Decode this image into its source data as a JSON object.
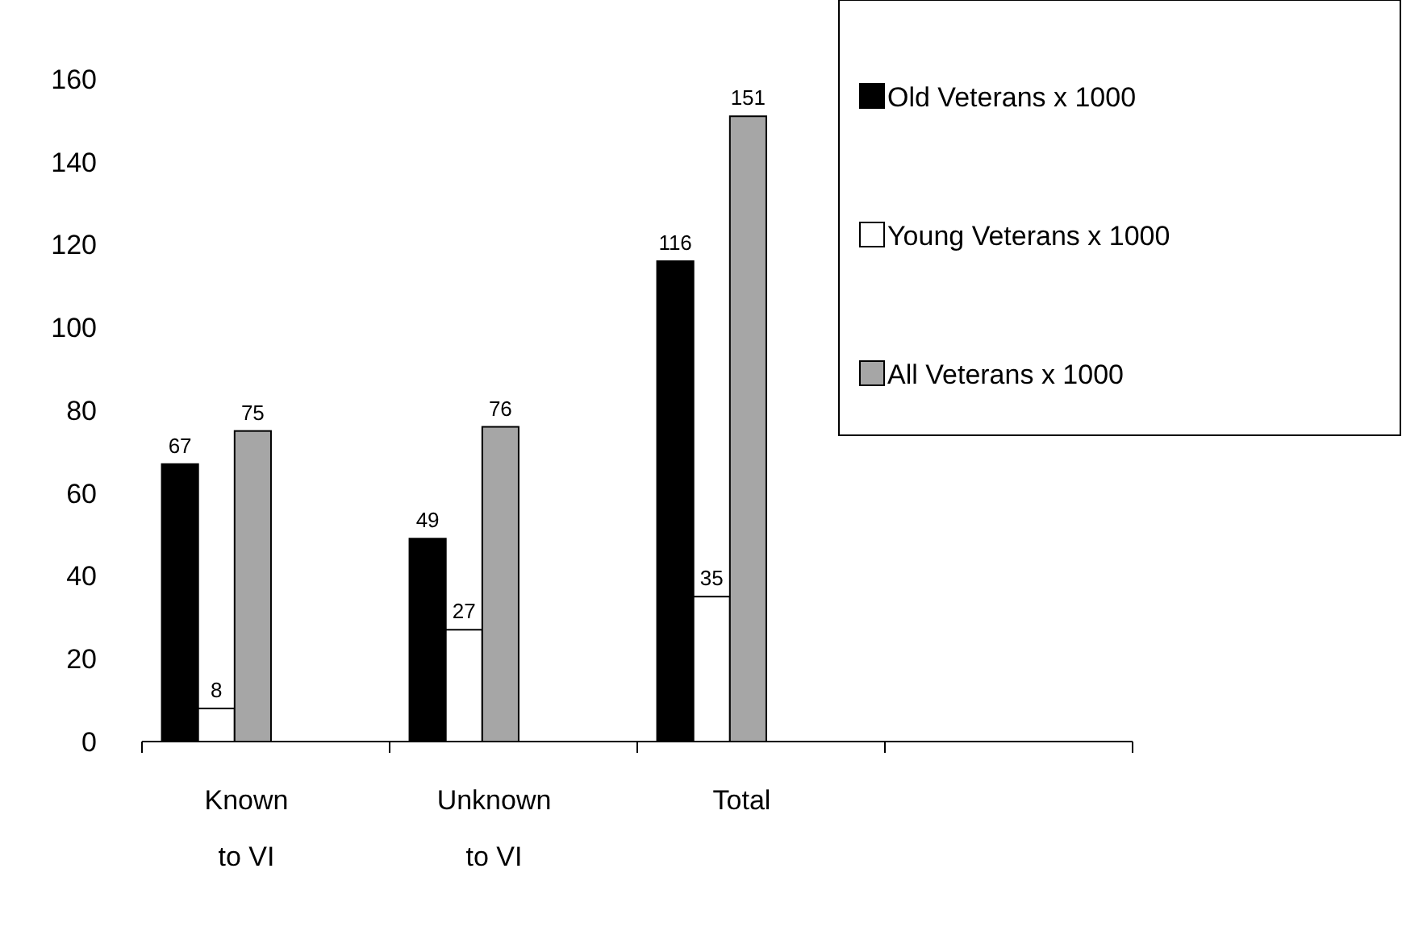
{
  "chart_data": {
    "type": "bar",
    "categories": [
      "Known to VI",
      "Unknown to VI",
      "Total",
      null
    ],
    "series": [
      {
        "name": "Old Veterans x 1000",
        "color": "#000000",
        "values": [
          67,
          49,
          116,
          null
        ]
      },
      {
        "name": "Young Veterans x 1000",
        "color": "#ffffff",
        "values": [
          8,
          27,
          35,
          null
        ]
      },
      {
        "name": "All Veterans x 1000",
        "color": "#a6a6a6",
        "values": [
          75,
          76,
          151,
          null
        ]
      }
    ],
    "ylim": [
      0,
      160
    ],
    "yticks": [
      0,
      20,
      40,
      60,
      80,
      100,
      120,
      140,
      160
    ],
    "data_labels": true,
    "legend": "top right",
    "grid": false
  }
}
